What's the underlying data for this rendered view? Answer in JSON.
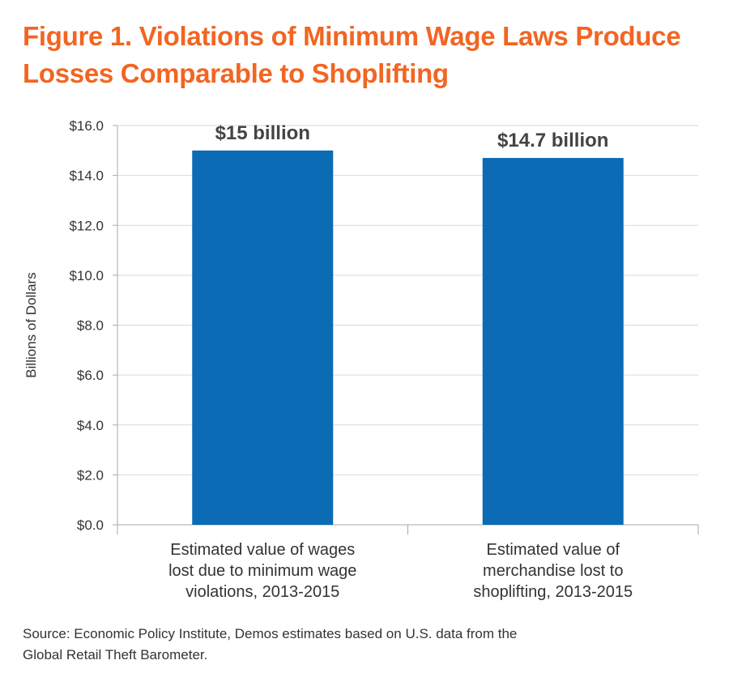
{
  "title_lines": [
    "Figure 1. Violations of Minimum Wage Laws Produce",
    "Losses Comparable to Shoplifting"
  ],
  "source_lines": [
    "Source: Economic Policy Institute, Demos estimates based on U.S. data from the",
    "Global Retail Theft Barometer."
  ],
  "colors": {
    "title": "#f26522",
    "bar": "#0b6bb5",
    "grid": "#d9d9d9",
    "text": "#333333"
  },
  "chart_data": {
    "type": "bar",
    "title": "Figure 1. Violations of Minimum Wage Laws Produce Losses Comparable to Shoplifting",
    "ylabel": "Billions of Dollars",
    "xlabel": "",
    "ylim": [
      0,
      16
    ],
    "grid": true,
    "yticks": [
      "$0.0",
      "$2.0",
      "$4.0",
      "$6.0",
      "$8.0",
      "$10.0",
      "$12.0",
      "$14.0",
      "$16.0"
    ],
    "categories": [
      [
        "Estimated value of wages",
        "lost due to minimum wage",
        "violations, 2013-2015"
      ],
      [
        "Estimated value of",
        "merchandise lost to",
        "shoplifting, 2013-2015"
      ]
    ],
    "values": [
      15,
      14.7
    ],
    "data_labels": [
      "$15 billion",
      "$14.7 billion"
    ]
  }
}
